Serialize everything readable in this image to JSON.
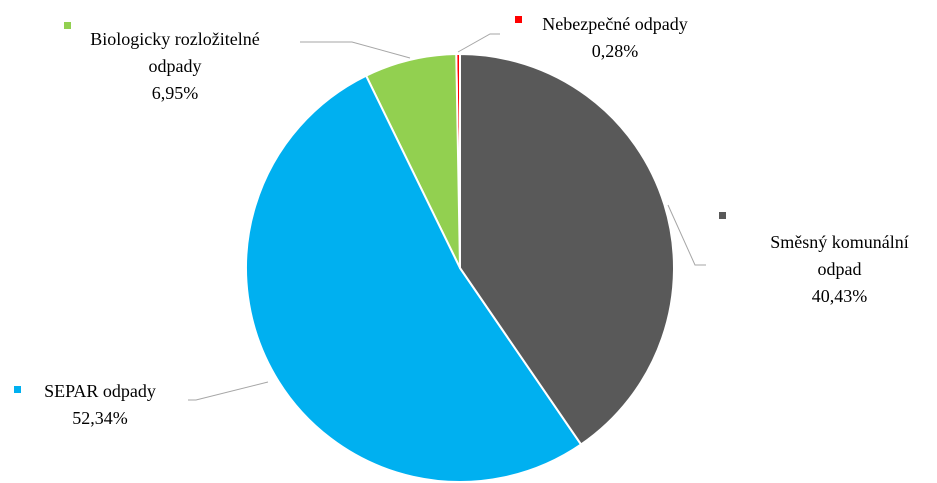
{
  "chart_data": {
    "type": "pie",
    "categories": [
      "Směsný komunální odpad",
      "SEPAR odpady",
      "Biologicky rozložitelné odpady",
      "Nebezpečné odpady"
    ],
    "values": [
      40.43,
      52.34,
      6.95,
      0.28
    ],
    "value_labels": [
      "40,43%",
      "52,34%",
      "6,95%",
      "0,28%"
    ],
    "colors": [
      "#595959",
      "#00b0f0",
      "#92d050",
      "#ff0000"
    ]
  }
}
